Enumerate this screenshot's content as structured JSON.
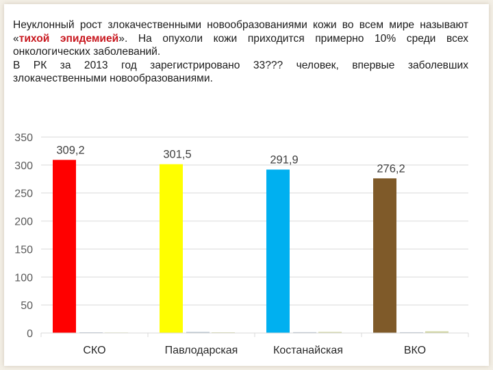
{
  "text": {
    "line1_before": "Неуклонный рост злокачественными новообразованиями кожи во всем мире называют «",
    "highlight": "тихой эпидемией",
    "line1_after": "». На опухоли кожи приходится примерно 10% среди всех онкологических заболеваний.",
    "line2": "В РК за 2013 год зарегистрировано 33??? человек, впервые заболевших злокачественными новообразованиями."
  },
  "colors": {
    "accent": "#c8171e",
    "gridline": "#d9d9d9"
  },
  "chart_data": {
    "type": "bar",
    "categories": [
      "СКО",
      "Павлодарская",
      "Костанайская",
      "ВКО"
    ],
    "series": [
      {
        "values": [
          309.2,
          301.5,
          291.9,
          276.2
        ],
        "labels": [
          "309,2",
          "301,5",
          "291,9",
          "276,2"
        ],
        "colors": [
          "#ff0000",
          "#ffff00",
          "#00b0f0",
          "#7f5a29"
        ]
      },
      {
        "values": [
          1.2,
          1.8,
          1.4,
          1.3
        ],
        "color": "#a6b5c4"
      },
      {
        "values": [
          0.9,
          1.2,
          1.9,
          2.9
        ],
        "color": "#cdd29a"
      }
    ],
    "ylim": [
      0,
      350
    ],
    "yticks": [
      0,
      50,
      100,
      150,
      200,
      250,
      300,
      350
    ],
    "grid": true,
    "legend": "none",
    "title": "",
    "xlabel": "",
    "ylabel": ""
  }
}
